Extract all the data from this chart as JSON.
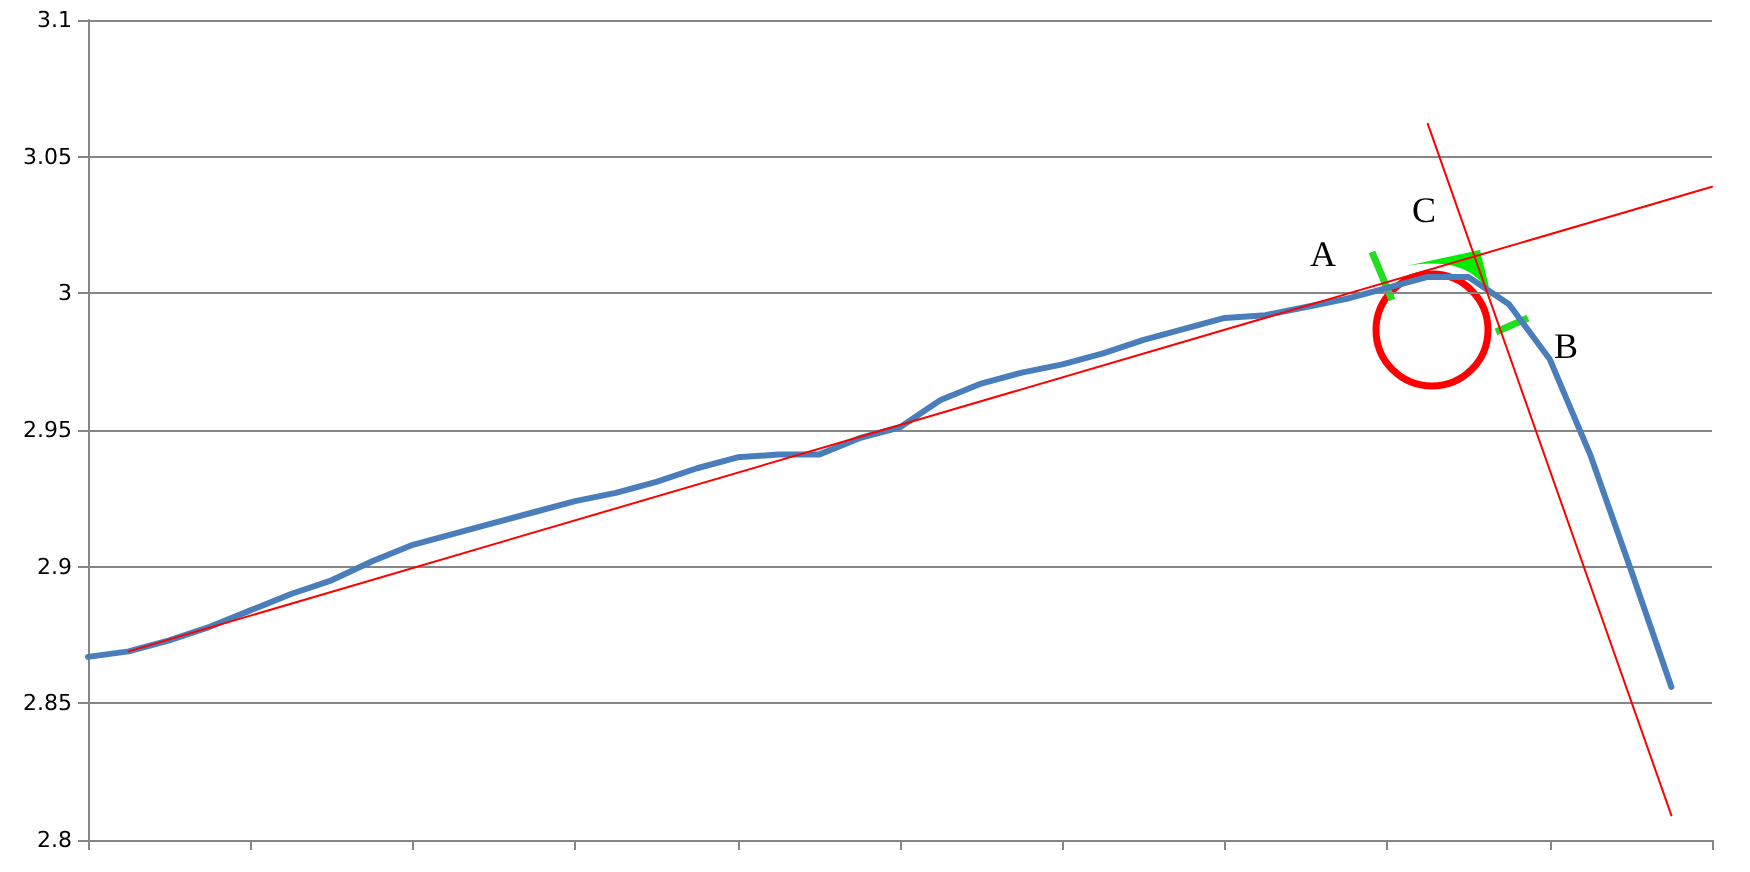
{
  "chart_data": {
    "type": "line",
    "categories": [
      null,
      null,
      null,
      null,
      null,
      null,
      null,
      null,
      null,
      null,
      null,
      null,
      null,
      null,
      null,
      null,
      null,
      null,
      null,
      null,
      null,
      null,
      null,
      null,
      null,
      null,
      null,
      null,
      null,
      null,
      null,
      null,
      null,
      null,
      null,
      null,
      null,
      null,
      null,
      null,
      null
    ],
    "series": [
      {
        "color": "#4a7ebb",
        "values": [
          2.867,
          2.869,
          2.873,
          2.878,
          2.884,
          2.89,
          2.895,
          2.902,
          2.908,
          2.912,
          2.916,
          2.92,
          2.924,
          2.927,
          2.931,
          2.936,
          2.94,
          2.941,
          2.941,
          2.947,
          2.951,
          2.961,
          2.967,
          2.971,
          2.974,
          2.978,
          2.983,
          2.987,
          2.991,
          2.992,
          2.995,
          2.998,
          3.002,
          3.006,
          3.006,
          2.996,
          2.976,
          2.941,
          2.899,
          2.856,
          null
        ]
      },
      {
        "type": "line",
        "color": "#ff0000",
        "values": [
          null,
          2.869,
          null,
          null,
          null,
          null,
          null,
          null,
          null,
          null,
          null,
          null,
          null,
          null,
          null,
          null,
          null,
          null,
          null,
          null,
          null,
          null,
          null,
          null,
          null,
          null,
          null,
          null,
          null,
          null,
          null,
          null,
          null,
          null,
          null,
          null,
          null,
          null,
          null,
          null,
          3.039
        ]
      },
      {
        "type": "line",
        "color": "#ff0000",
        "values": [
          null,
          null,
          null,
          null,
          null,
          null,
          null,
          null,
          null,
          null,
          null,
          null,
          null,
          null,
          null,
          null,
          null,
          null,
          null,
          null,
          null,
          null,
          null,
          null,
          null,
          null,
          null,
          null,
          null,
          null,
          null,
          null,
          null,
          3.062,
          null,
          null,
          null,
          null,
          null,
          2.809,
          null
        ]
      }
    ],
    "ylim": [
      2.8,
      3.1
    ],
    "yticks": [
      2.8,
      2.85,
      2.9,
      2.95,
      3,
      3.05,
      3.1
    ],
    "grid": "y",
    "tick_labels": "y",
    "marker": "none",
    "line_style": "solid",
    "annotations": [
      "A",
      "C",
      "B"
    ]
  }
}
